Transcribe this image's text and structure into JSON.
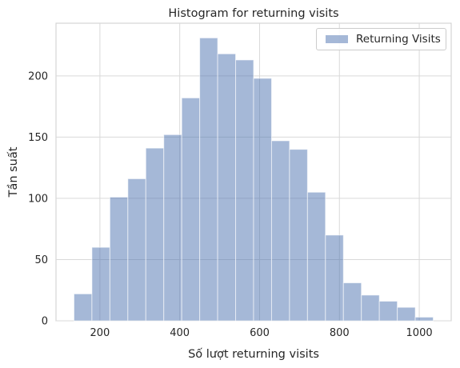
{
  "chart_data": {
    "type": "bar",
    "title": "Histogram for returning visits",
    "xlabel": "Số lượt returning visits",
    "ylabel": "Tần suất",
    "legend": {
      "label": "Returning Visits",
      "position": "top-right"
    },
    "bar_color": "#4c72b0",
    "bar_alpha": 0.5,
    "grid": true,
    "xlim": [
      90,
      1080
    ],
    "ylim": [
      0,
      243
    ],
    "x_ticks": [
      200,
      400,
      600,
      800,
      1000
    ],
    "y_ticks": [
      0,
      50,
      100,
      150,
      200
    ],
    "bins": [
      {
        "x0": 135,
        "x1": 180,
        "count": 22
      },
      {
        "x0": 180,
        "x1": 225,
        "count": 60
      },
      {
        "x0": 225,
        "x1": 270,
        "count": 101
      },
      {
        "x0": 270,
        "x1": 315,
        "count": 116
      },
      {
        "x0": 315,
        "x1": 360,
        "count": 141
      },
      {
        "x0": 360,
        "x1": 405,
        "count": 152
      },
      {
        "x0": 405,
        "x1": 450,
        "count": 182
      },
      {
        "x0": 450,
        "x1": 495,
        "count": 231
      },
      {
        "x0": 495,
        "x1": 540,
        "count": 218
      },
      {
        "x0": 540,
        "x1": 585,
        "count": 213
      },
      {
        "x0": 585,
        "x1": 630,
        "count": 198
      },
      {
        "x0": 630,
        "x1": 675,
        "count": 147
      },
      {
        "x0": 675,
        "x1": 720,
        "count": 140
      },
      {
        "x0": 720,
        "x1": 765,
        "count": 105
      },
      {
        "x0": 765,
        "x1": 810,
        "count": 70
      },
      {
        "x0": 810,
        "x1": 855,
        "count": 31
      },
      {
        "x0": 855,
        "x1": 900,
        "count": 21
      },
      {
        "x0": 900,
        "x1": 945,
        "count": 16
      },
      {
        "x0": 945,
        "x1": 990,
        "count": 11
      },
      {
        "x0": 990,
        "x1": 1035,
        "count": 3
      }
    ]
  }
}
